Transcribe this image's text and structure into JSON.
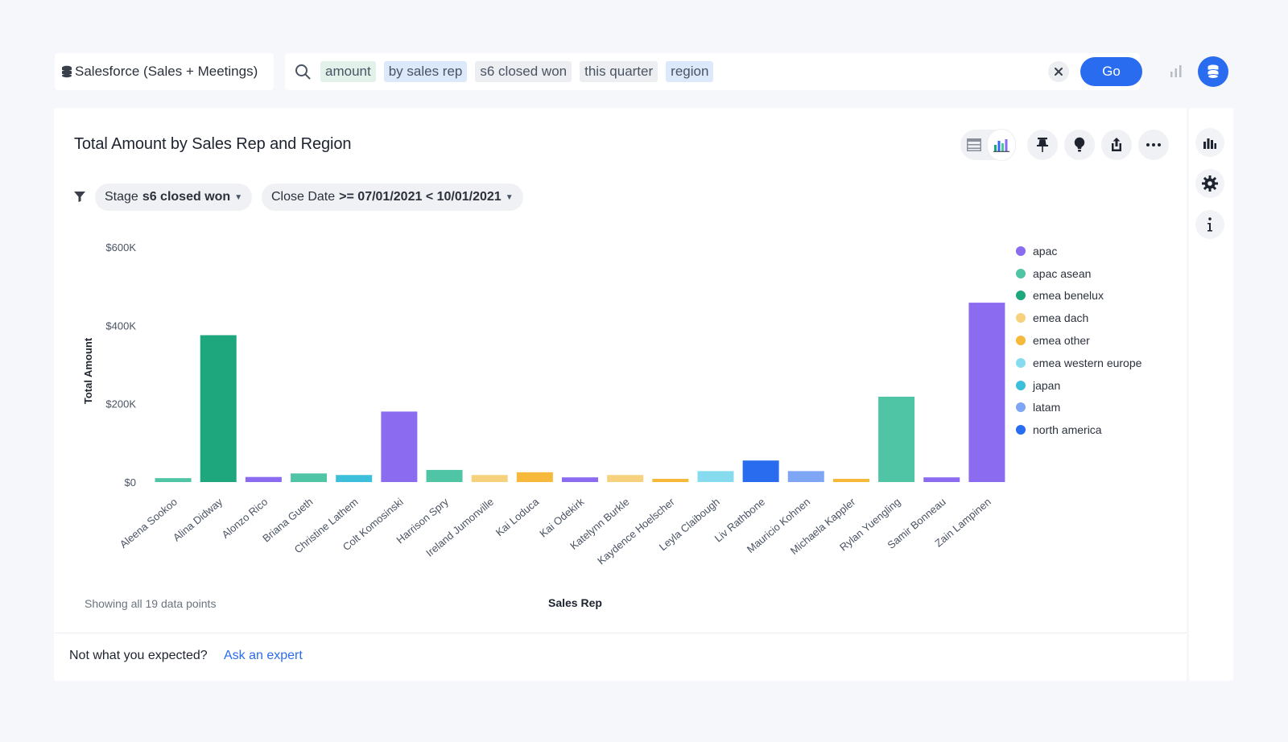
{
  "search": {
    "source_label": "Salesforce (Sales + Meetings)",
    "tokens": [
      "amount",
      "by sales rep",
      "s6 closed won",
      "this quarter",
      "region"
    ],
    "go_label": "Go",
    "clear_label": "×"
  },
  "chart_header": {
    "title": "Total Amount by Sales Rep and Region"
  },
  "filters": [
    {
      "field": "Stage",
      "value": "s6 closed won"
    },
    {
      "field": "Close Date",
      "value": ">= 07/01/2021 < 10/01/2021"
    }
  ],
  "footer": {
    "data_points": "Showing all 19 data points",
    "question": "Not what you expected?",
    "link": "Ask an expert"
  },
  "colors": {
    "accent": "#2a6cef",
    "regions": {
      "apac": "#8b6cf0",
      "apac asean": "#4fc5a5",
      "emea benelux": "#1ea67c",
      "emea dach": "#f7d27e",
      "emea other": "#f6b93b",
      "emea western europe": "#86dcee",
      "japan": "#3bbfda",
      "latam": "#7fa5f5",
      "north america": "#2a6cef"
    }
  },
  "chart_data": {
    "type": "bar",
    "xlabel": "Sales Rep",
    "ylabel": "Total Amount",
    "ylim": [
      0,
      600000
    ],
    "yticks": [
      {
        "value": 0,
        "label": "$0"
      },
      {
        "value": 200000,
        "label": "$200K"
      },
      {
        "value": 400000,
        "label": "$400K"
      },
      {
        "value": 600000,
        "label": "$600K"
      }
    ],
    "legend_position": "right",
    "legend": [
      "apac",
      "apac asean",
      "emea benelux",
      "emea dach",
      "emea other",
      "emea western europe",
      "japan",
      "latam",
      "north america"
    ],
    "categories": [
      "Aleena Sookoo",
      "Alina Didway",
      "Alonzo Rico",
      "Briana Gueth",
      "Christine Lathem",
      "Colt Komosinski",
      "Harrison Spry",
      "Ireland Jumonville",
      "Kai Loduca",
      "Kai Odekirk",
      "Katelynn Burkle",
      "Kaydence Hoelscher",
      "Leyla Claibough",
      "Liv Rathbone",
      "Mauricio Kohnen",
      "Michaela Kappler",
      "Rylan Yuengling",
      "Samir Bonneau",
      "Zain Lampinen"
    ],
    "regions": [
      "apac asean",
      "emea benelux",
      "apac",
      "apac asean",
      "japan",
      "apac",
      "apac asean",
      "emea dach",
      "emea other",
      "apac",
      "emea dach",
      "emea other",
      "emea western europe",
      "north america",
      "latam",
      "emea other",
      "apac asean",
      "apac",
      "apac"
    ],
    "values": [
      10000,
      375000,
      13000,
      22000,
      18000,
      180000,
      31000,
      18000,
      25000,
      12000,
      18000,
      8000,
      28000,
      55000,
      28000,
      8000,
      218000,
      12000,
      458000
    ]
  }
}
